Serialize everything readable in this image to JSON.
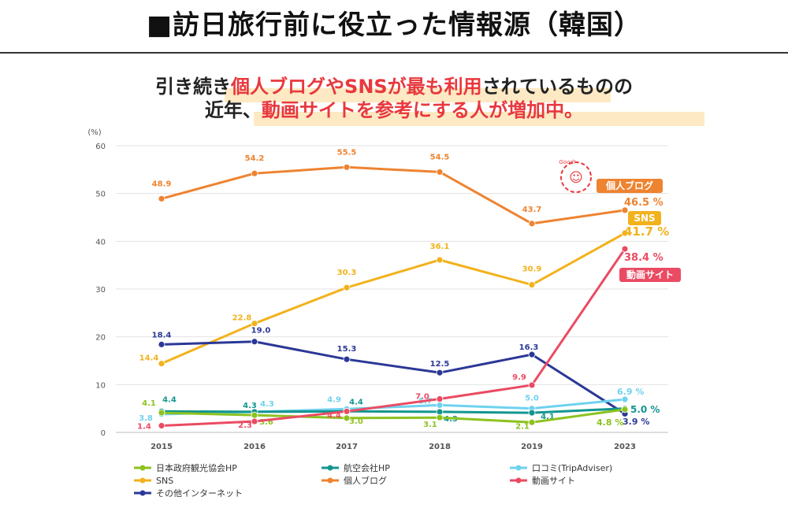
{
  "title": "■訪日旅行前に役立った情報源（韓国）",
  "subtitle": {
    "line1": [
      {
        "text": "引き続き",
        "emph": false
      },
      {
        "text": "個人ブログやSNSが最も利用",
        "emph": true
      },
      {
        "text": "されているものの",
        "emph": false
      }
    ],
    "line2": [
      {
        "text": "近年、",
        "emph": false
      },
      {
        "text": "動画サイトを参考にする人が増加中。",
        "emph": true
      }
    ]
  },
  "badge_text": "Good!",
  "chart_data": {
    "type": "line",
    "y_unit": "(%)",
    "x": [
      "2015",
      "2016",
      "2017",
      "2018",
      "2019",
      "2023"
    ],
    "ylim": [
      0,
      60
    ],
    "yticks": [
      0,
      10,
      20,
      30,
      40,
      50,
      60
    ],
    "grid": true,
    "legend_position": "bottom",
    "colors": {
      "jnto": "#8dc21f",
      "airline": "#13958f",
      "kuchikomi": "#6fd2ee",
      "sns": "#f2b21c",
      "blog": "#ee8330",
      "video": "#ea4b63",
      "other": "#2b3896"
    },
    "series": [
      {
        "key": "jnto",
        "name": "日本政府観光協会HP",
        "values": [
          4.1,
          3.6,
          3.0,
          3.1,
          2.1,
          4.8
        ],
        "labels": [
          "4.1",
          "3.6",
          "3.0",
          "3.1",
          "2.1",
          "4.8 %"
        ]
      },
      {
        "key": "airline",
        "name": "航空会社HP",
        "values": [
          4.4,
          4.3,
          4.4,
          4.3,
          4.1,
          5.0
        ],
        "labels": [
          "4.4",
          "4.3",
          "4.4",
          "4.3",
          "4.1",
          "5.0 %"
        ]
      },
      {
        "key": "kuchikomi",
        "name": "口コミ(TripAdviser)",
        "values": [
          3.8,
          4.3,
          4.9,
          5.7,
          5.0,
          6.9
        ],
        "labels": [
          "3.8",
          "4.3",
          "4.9",
          "5.7",
          "5.0",
          "6.9 %"
        ]
      },
      {
        "key": "sns",
        "name": "SNS",
        "values": [
          14.4,
          22.8,
          30.3,
          36.1,
          30.9,
          41.7
        ],
        "labels": [
          "14.4",
          "22.8",
          "30.3",
          "36.1",
          "30.9",
          "41.7 %"
        ]
      },
      {
        "key": "blog",
        "name": "個人ブログ",
        "values": [
          48.9,
          54.2,
          55.5,
          54.5,
          43.7,
          46.5
        ],
        "labels": [
          "48.9",
          "54.2",
          "55.5",
          "54.5",
          "43.7",
          "46.5 %"
        ]
      },
      {
        "key": "video",
        "name": "動画サイト",
        "values": [
          1.4,
          2.3,
          4.4,
          7.0,
          9.9,
          38.4
        ],
        "labels": [
          "1.4",
          "2.3",
          "4.4",
          "7.0",
          "9.9",
          "38.4 %"
        ]
      },
      {
        "key": "other",
        "name": "その他インターネット",
        "values": [
          18.4,
          19.0,
          15.3,
          12.5,
          16.3,
          3.9
        ],
        "labels": [
          "18.4",
          "19.0",
          "15.3",
          "12.5",
          "16.3",
          "3.9 %"
        ]
      }
    ],
    "callouts": [
      {
        "series": "blog",
        "text": "個人ブログ"
      },
      {
        "series": "sns",
        "text": "SNS"
      },
      {
        "series": "video",
        "text": "動画サイト"
      }
    ]
  }
}
